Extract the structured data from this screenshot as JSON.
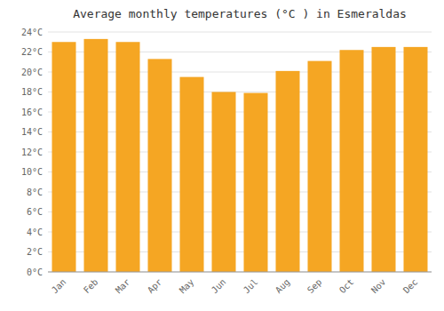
{
  "chart_data": {
    "type": "bar",
    "title": "Average monthly temperatures (°C ) in Esmeraldas",
    "categories": [
      "Jan",
      "Feb",
      "Mar",
      "Apr",
      "May",
      "Jun",
      "Jul",
      "Aug",
      "Sep",
      "Oct",
      "Nov",
      "Dec"
    ],
    "values": [
      23.0,
      23.3,
      23.0,
      21.3,
      19.5,
      18.0,
      17.9,
      20.1,
      21.1,
      22.2,
      22.5,
      22.5
    ],
    "color": "#F5A623",
    "ylim": [
      0,
      24
    ],
    "yticks": [
      {
        "value": 0,
        "label": "0°C"
      },
      {
        "value": 2,
        "label": "2°C"
      },
      {
        "value": 4,
        "label": "4°C"
      },
      {
        "value": 6,
        "label": "6°C"
      },
      {
        "value": 8,
        "label": "8°C"
      },
      {
        "value": 10,
        "label": "10°C"
      },
      {
        "value": 12,
        "label": "12°C"
      },
      {
        "value": 14,
        "label": "14°C"
      },
      {
        "value": 16,
        "label": "16°C"
      },
      {
        "value": 18,
        "label": "18°C"
      },
      {
        "value": 20,
        "label": "20°C"
      },
      {
        "value": 22,
        "label": "22°C"
      },
      {
        "value": 24,
        "label": "24°C"
      }
    ],
    "grid": true
  }
}
